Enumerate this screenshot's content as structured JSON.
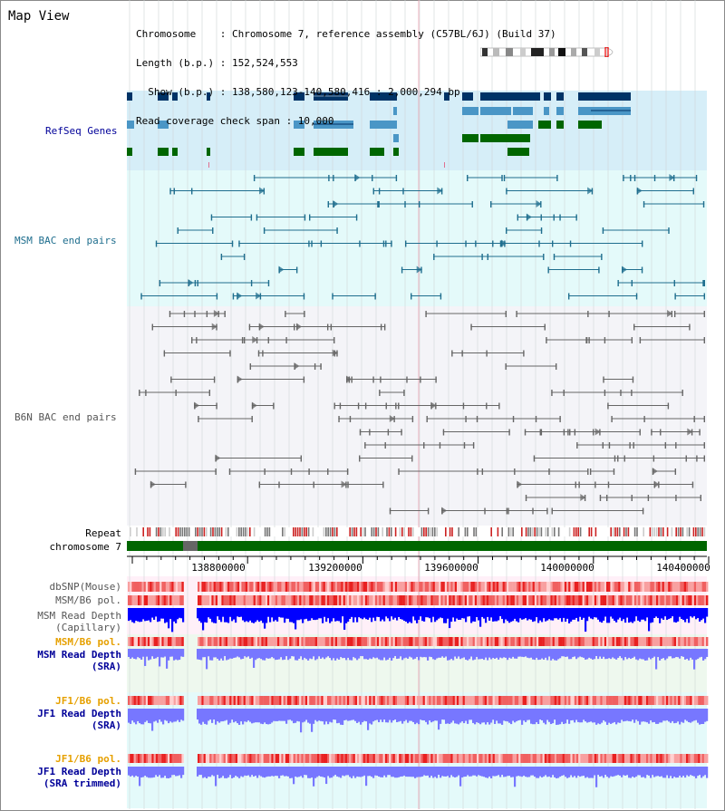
{
  "title": "Map View",
  "info": {
    "chromosome": "Chromosome    : Chromosome 7, reference assembly (C57BL/6J) (Build 37)",
    "length": "Length (b.p.) : 152,524,553",
    "show": "  Show (b.p.) : 138,580,123-140,580,416 : 2,000,294 bp",
    "coverage": "Read coverage check span : 10,000"
  },
  "tracks": {
    "refseq": "RefSeq Genes",
    "msm_bac": "MSM BAC end pairs",
    "b6n_bac": "B6N BAC end pairs",
    "repeat": "Repeat",
    "chromosome": "chromosome 7",
    "dbsnp": "dbSNP(Mouse)",
    "msm_b6_pol": "MSM/B6 pol.",
    "msm_depth_cap_1": "MSM Read Depth",
    "msm_depth_cap_2": "(Capillary)",
    "msm_b6_pol_sra": "MSM/B6 pol.",
    "msm_depth_sra_1": "MSM Read Depth",
    "msm_depth_sra_2": "(SRA)",
    "jf1_b6_pol": "JF1/B6 pol.",
    "jf1_depth_sra_1": "JF1 Read Depth",
    "jf1_depth_sra_2": "(SRA)",
    "jf1_b6_pol_trim": "JF1/B6 pol.",
    "jf1_depth_trim_1": "JF1 Read Depth",
    "jf1_depth_trim_2": "(SRA trimmed)"
  },
  "axis": {
    "ticks": [
      "138800000",
      "139200000",
      "139600000",
      "140000000",
      "140400000"
    ]
  },
  "colors": {
    "refseq_bg": "#d6eef8",
    "msm_bac_bg": "#e4fafa",
    "b6n_bg": "#f4f4f8",
    "gene_dark": "#003366",
    "gene_mid": "#4a96c6",
    "gene_green": "#006600",
    "msm_line": "#1f6e8e",
    "b6n_line": "#666666",
    "orange_label": "#e6a000",
    "blue_label": "#000099",
    "depth_dark": "#0000ff",
    "depth_light": "#7777ff"
  }
}
